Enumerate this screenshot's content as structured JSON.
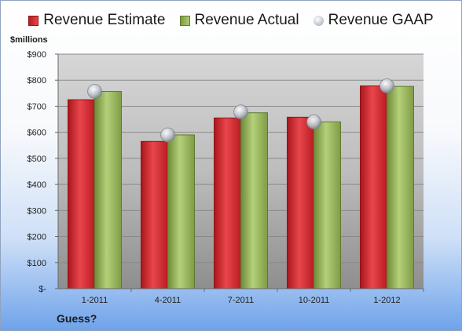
{
  "chart_data": {
    "type": "bar",
    "unit_label": "$millions",
    "categories": [
      "1-2011",
      "4-2011",
      "7-2011",
      "10-2011",
      "1-2012"
    ],
    "series": [
      {
        "name": "Revenue Estimate",
        "kind": "bar",
        "color": "#d7272d",
        "values": [
          725,
          565,
          655,
          658,
          778
        ]
      },
      {
        "name": "Revenue Actual",
        "kind": "bar",
        "color": "#9bbb59",
        "values": [
          757,
          590,
          675,
          640,
          776
        ]
      },
      {
        "name": "Revenue GAAP",
        "kind": "marker",
        "color": "#c0c6cf",
        "values": [
          757,
          590,
          678,
          640,
          778
        ]
      }
    ],
    "ylim": [
      0,
      900
    ],
    "yticks": [
      0,
      100,
      200,
      300,
      400,
      500,
      600,
      700,
      800,
      900
    ],
    "ytick_labels": [
      "$-",
      "$100",
      "$200",
      "$300",
      "$400",
      "$500",
      "$600",
      "$700",
      "$800",
      "$900"
    ],
    "grid": true,
    "legend_position": "top",
    "footnote": "Guess?"
  }
}
